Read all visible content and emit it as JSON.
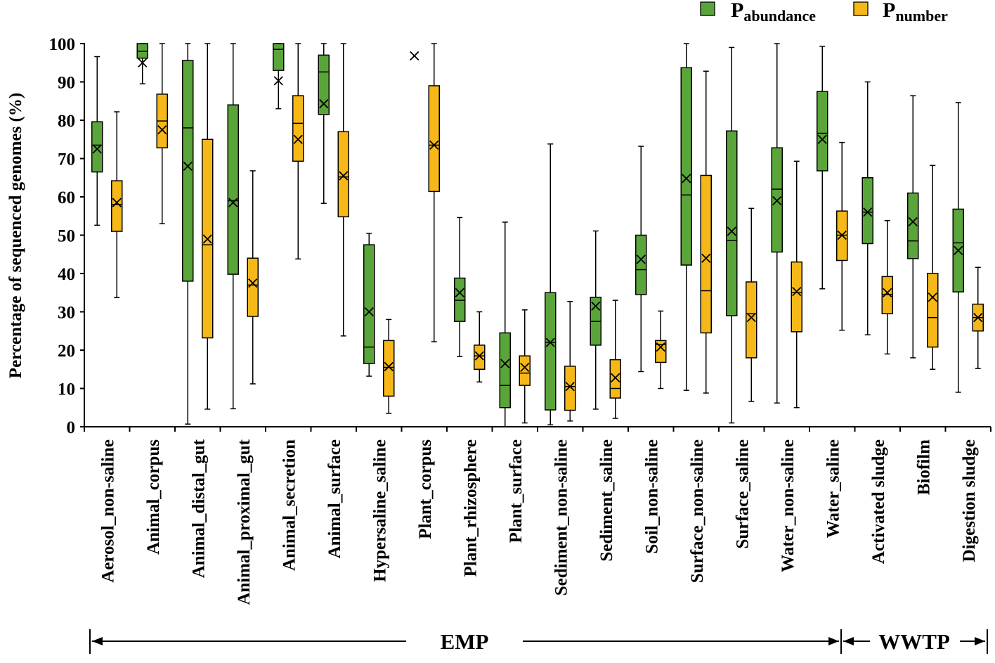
{
  "chart_data": {
    "type": "boxplot",
    "title": "",
    "ylabel": "Percentage of sequenced genomes (%)",
    "xlabel": "",
    "ylim": [
      0,
      100
    ],
    "yticks": [
      0,
      10,
      20,
      30,
      40,
      50,
      60,
      70,
      80,
      90,
      100
    ],
    "legend": {
      "position": "top-right",
      "entries": [
        {
          "symbol": "P",
          "sub": "abundance",
          "color": "#5aa53a"
        },
        {
          "symbol": "P",
          "sub": "number",
          "color": "#f6b818"
        }
      ]
    },
    "colors": {
      "abundance": "#5aa53a",
      "number": "#f6b818",
      "edge": "#000000"
    },
    "categories": [
      "Aerosol_non-saline",
      "Animal_corpus",
      "Animal_distal_gut",
      "Animal_proximal_gut",
      "Animal_secretion",
      "Animal_surface",
      "Hypersaline_saline",
      "Plant_corpus",
      "Plant_rhizosphere",
      "Plant_surface",
      "Sediment_non-saline",
      "Sediment_saline",
      "Soil_non-saline",
      "Surface_non-saline",
      "Surface_saline",
      "Water_non-saline",
      "Water_saline",
      "Activated sludge",
      "Biofilm",
      "Digestion sludge"
    ],
    "groups": [
      {
        "label": "EMP",
        "from": 0,
        "to": 16
      },
      {
        "label": "WWTP",
        "from": 17,
        "to": 19
      }
    ],
    "series": [
      {
        "name": "P_abundance",
        "boxes": [
          {
            "min": 52.6,
            "q1": 66.5,
            "median": 73.5,
            "q3": 79.6,
            "max": 96.6,
            "mean": 72.5
          },
          {
            "min": 89.5,
            "q1": 96.2,
            "median": 98.0,
            "q3": 100.0,
            "max": 100.0,
            "mean": 95.0
          },
          {
            "min": 0.7,
            "q1": 38.0,
            "median": 78.0,
            "q3": 95.6,
            "max": 100.0,
            "mean": 68.0
          },
          {
            "min": 4.7,
            "q1": 39.8,
            "median": 59.0,
            "q3": 84.0,
            "max": 100.0,
            "mean": 58.5
          },
          {
            "min": 83.0,
            "q1": 93.0,
            "median": 98.5,
            "q3": 100.0,
            "max": 100.0,
            "mean": 90.3
          },
          {
            "min": 58.3,
            "q1": 81.5,
            "median": 92.6,
            "q3": 97.0,
            "max": 100.0,
            "mean": 84.3
          },
          {
            "min": 13.2,
            "q1": 16.5,
            "median": 20.8,
            "q3": 47.5,
            "max": 50.5,
            "mean": 30.0
          },
          {
            "min": null,
            "q1": null,
            "median": null,
            "q3": null,
            "max": null,
            "mean": 96.8
          },
          {
            "min": 18.3,
            "q1": 27.5,
            "median": 33.0,
            "q3": 38.8,
            "max": 54.6,
            "mean": 35.0
          },
          {
            "min": 0.0,
            "q1": 5.0,
            "median": 10.8,
            "q3": 24.5,
            "max": 53.4,
            "mean": 16.5
          },
          {
            "min": 0.5,
            "q1": 4.4,
            "median": 22.0,
            "q3": 35.0,
            "max": 73.8,
            "mean": 22.0
          },
          {
            "min": 4.6,
            "q1": 21.3,
            "median": 27.5,
            "q3": 33.8,
            "max": 51.1,
            "mean": 31.5
          },
          {
            "min": 14.4,
            "q1": 34.5,
            "median": 41.0,
            "q3": 50.0,
            "max": 73.2,
            "mean": 43.7
          },
          {
            "min": 9.5,
            "q1": 42.2,
            "median": 60.5,
            "q3": 93.7,
            "max": 100.0,
            "mean": 64.8
          },
          {
            "min": 1.0,
            "q1": 29.0,
            "median": 48.6,
            "q3": 77.2,
            "max": 99.0,
            "mean": 51.0
          },
          {
            "min": 6.2,
            "q1": 45.6,
            "median": 62.0,
            "q3": 72.8,
            "max": 100.0,
            "mean": 59.0
          },
          {
            "min": 36.0,
            "q1": 66.8,
            "median": 76.6,
            "q3": 87.5,
            "max": 99.3,
            "mean": 75.0
          },
          {
            "min": 24.0,
            "q1": 47.8,
            "median": 56.0,
            "q3": 65.0,
            "max": 90.0,
            "mean": 56.0
          },
          {
            "min": 18.0,
            "q1": 43.9,
            "median": 48.5,
            "q3": 61.0,
            "max": 86.4,
            "mean": 53.5
          },
          {
            "min": 9.0,
            "q1": 35.2,
            "median": 48.0,
            "q3": 56.8,
            "max": 84.6,
            "mean": 46.0
          }
        ]
      },
      {
        "name": "P_number",
        "boxes": [
          {
            "min": 33.7,
            "q1": 51.0,
            "median": 58.0,
            "q3": 64.2,
            "max": 82.2,
            "mean": 58.5
          },
          {
            "min": 53.0,
            "q1": 72.8,
            "median": 79.8,
            "q3": 86.8,
            "max": 100.0,
            "mean": 77.5
          },
          {
            "min": 4.6,
            "q1": 23.2,
            "median": 47.5,
            "q3": 75.0,
            "max": 100.0,
            "mean": 49.0
          },
          {
            "min": 11.2,
            "q1": 28.8,
            "median": 37.0,
            "q3": 44.0,
            "max": 66.8,
            "mean": 37.5
          },
          {
            "min": 43.8,
            "q1": 69.3,
            "median": 79.2,
            "q3": 86.4,
            "max": 100.0,
            "mean": 75.0
          },
          {
            "min": 23.7,
            "q1": 54.8,
            "median": 65.2,
            "q3": 77.0,
            "max": 100.0,
            "mean": 65.5
          },
          {
            "min": 3.5,
            "q1": 8.0,
            "median": 15.5,
            "q3": 22.5,
            "max": 28.0,
            "mean": 15.7
          },
          {
            "min": 22.2,
            "q1": 61.4,
            "median": 73.5,
            "q3": 89.0,
            "max": 100.0,
            "mean": 73.5
          },
          {
            "min": 11.7,
            "q1": 15.0,
            "median": 18.5,
            "q3": 21.3,
            "max": 30.0,
            "mean": 18.5
          },
          {
            "min": 1.0,
            "q1": 10.8,
            "median": 14.0,
            "q3": 18.5,
            "max": 30.5,
            "mean": 15.5
          },
          {
            "min": 1.5,
            "q1": 4.3,
            "median": 10.5,
            "q3": 15.8,
            "max": 32.7,
            "mean": 10.5
          },
          {
            "min": 2.2,
            "q1": 7.5,
            "median": 10.0,
            "q3": 17.5,
            "max": 33.0,
            "mean": 12.8
          },
          {
            "min": 10.0,
            "q1": 16.8,
            "median": 21.5,
            "q3": 22.5,
            "max": 30.2,
            "mean": 20.8
          },
          {
            "min": 8.8,
            "q1": 24.5,
            "median": 35.5,
            "q3": 65.6,
            "max": 92.8,
            "mean": 44.0
          },
          {
            "min": 6.6,
            "q1": 18.0,
            "median": 29.5,
            "q3": 37.8,
            "max": 57.0,
            "mean": 28.5
          },
          {
            "min": 5.0,
            "q1": 24.8,
            "median": 35.0,
            "q3": 43.0,
            "max": 69.3,
            "mean": 35.3
          },
          {
            "min": 25.2,
            "q1": 43.4,
            "median": 50.0,
            "q3": 56.3,
            "max": 74.2,
            "mean": 50.0
          },
          {
            "min": 19.0,
            "q1": 29.5,
            "median": 34.5,
            "q3": 39.2,
            "max": 53.8,
            "mean": 35.0
          },
          {
            "min": 15.0,
            "q1": 20.8,
            "median": 28.5,
            "q3": 40.0,
            "max": 68.2,
            "mean": 33.8
          },
          {
            "min": 15.2,
            "q1": 25.0,
            "median": 28.5,
            "q3": 32.0,
            "max": 41.6,
            "mean": 28.5
          }
        ]
      }
    ]
  }
}
